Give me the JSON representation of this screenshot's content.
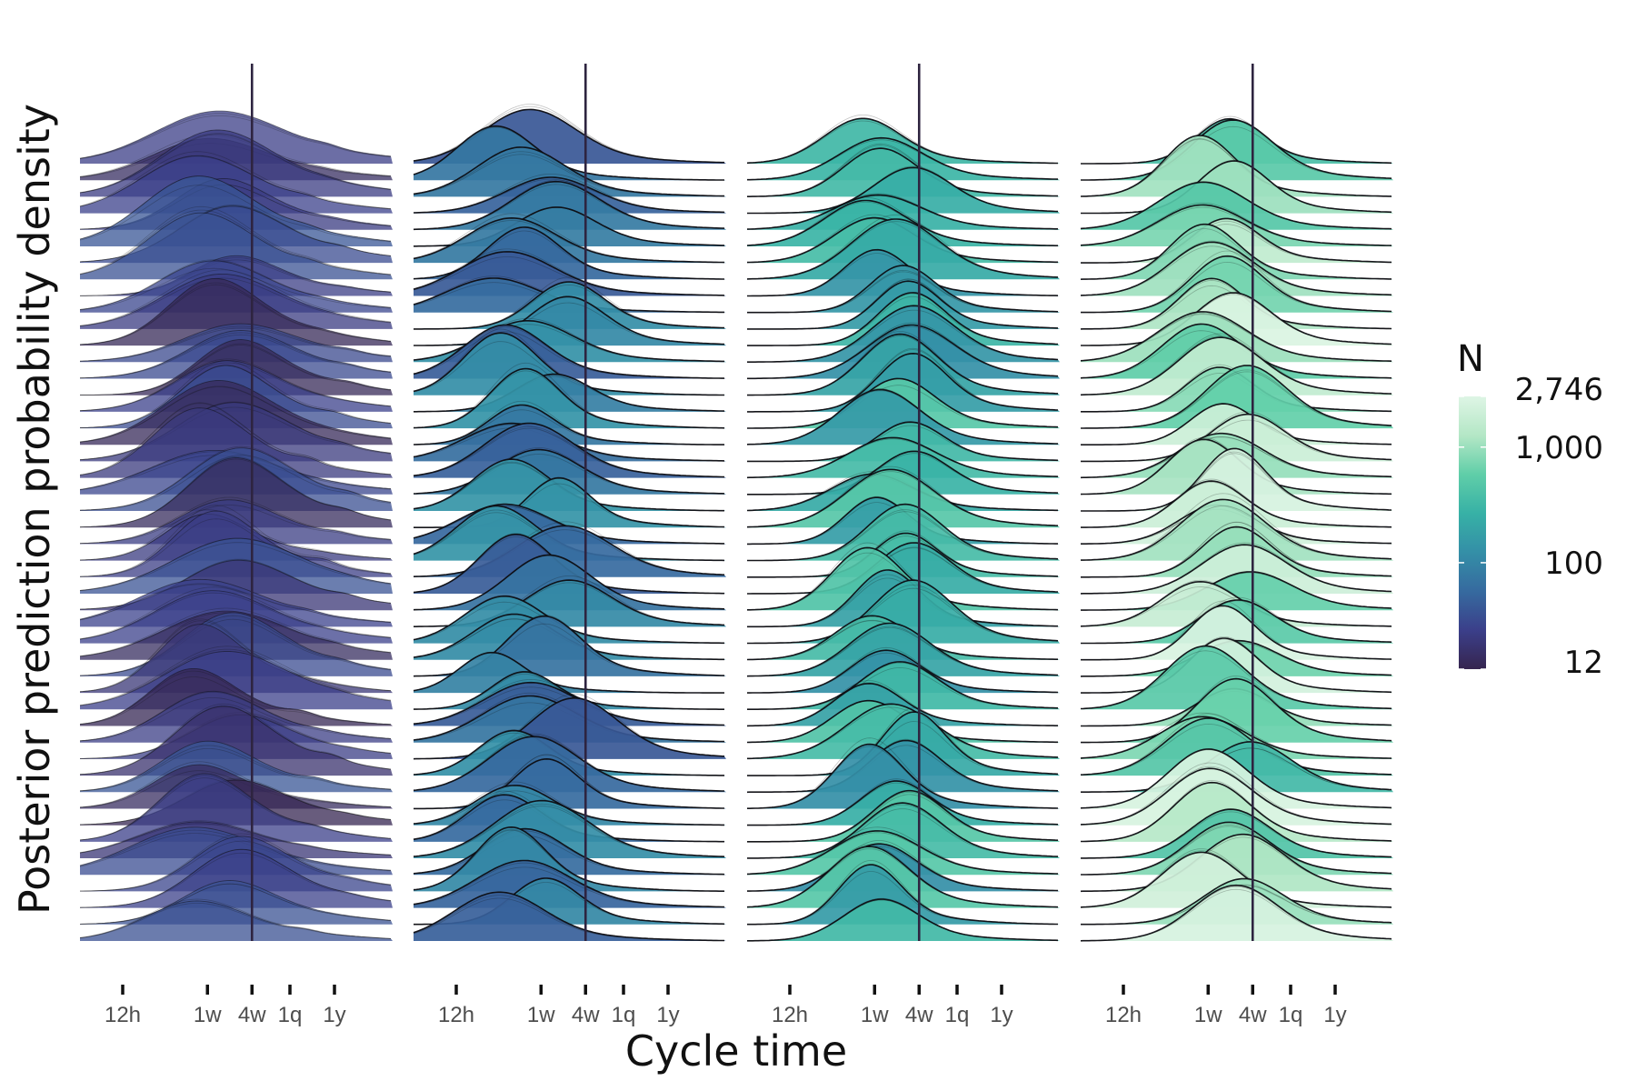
{
  "chart_data": {
    "type": "ridgeline",
    "xlabel": "Cycle time",
    "ylabel": "Posterior prediction probability density",
    "x_scale": "log (hours)",
    "x_ticks": [
      {
        "label": "12h",
        "hours": 12
      },
      {
        "label": "1w",
        "hours": 168
      },
      {
        "label": "4w",
        "hours": 672
      },
      {
        "label": "1q",
        "hours": 2190
      },
      {
        "label": "1y",
        "hours": 8760
      }
    ],
    "x_range_hours": [
      1.8,
      60000
    ],
    "reference_line_hours": 672,
    "ridges_per_panel": 48,
    "legend": {
      "title": "N",
      "scale": "log",
      "range": [
        12,
        2746
      ],
      "ticks": [
        {
          "label": "2,746",
          "value": 2746
        },
        {
          "label": "1,000",
          "value": 1000
        },
        {
          "label": "100",
          "value": 100
        },
        {
          "label": "12",
          "value": 12
        }
      ],
      "colors": [
        "#36254f",
        "#3b3f8a",
        "#366a9f",
        "#348fa7",
        "#37b1a6",
        "#60cea8",
        "#b4e7c6",
        "#def5e5"
      ]
    },
    "panels": [
      {
        "name": "panel 1",
        "n_min": 12,
        "n_max": 40,
        "mode_hours": [
          90,
          420
        ],
        "sigma": [
          1.2,
          1.9
        ],
        "heavy_tail": true
      },
      {
        "name": "panel 2",
        "n_min": 40,
        "n_max": 150,
        "mode_hours": [
          35,
          460
        ],
        "sigma": [
          0.95,
          1.45
        ],
        "heavy_tail": false
      },
      {
        "name": "panel 3",
        "n_min": 120,
        "n_max": 500,
        "mode_hours": [
          110,
          560
        ],
        "sigma": [
          0.95,
          1.35
        ],
        "heavy_tail": false
      },
      {
        "name": "panel 4",
        "n_min": 300,
        "n_max": 2746,
        "mode_hours": [
          120,
          620
        ],
        "sigma": [
          0.95,
          1.35
        ],
        "heavy_tail": false
      }
    ]
  }
}
